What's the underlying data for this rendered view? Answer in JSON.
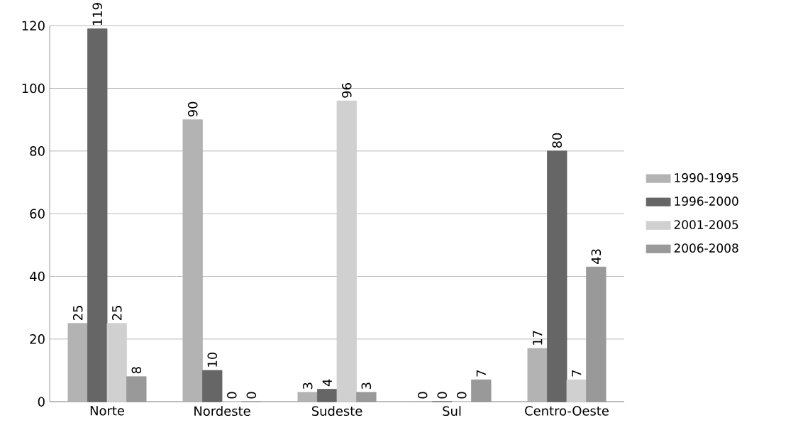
{
  "chart_data": {
    "type": "bar",
    "categories": [
      "Norte",
      "Nordeste",
      "Sudeste",
      "Sul",
      "Centro-Oeste"
    ],
    "series": [
      {
        "name": "1990-1995",
        "color": "#b3b3b3",
        "values": [
          25,
          90,
          3,
          0,
          17
        ]
      },
      {
        "name": "1996-2000",
        "color": "#666666",
        "values": [
          119,
          10,
          4,
          0,
          80
        ]
      },
      {
        "name": "2001-2005",
        "color": "#d0d0d0",
        "values": [
          25,
          0,
          96,
          0,
          7
        ]
      },
      {
        "name": "2006-2008",
        "color": "#999999",
        "values": [
          8,
          0,
          3,
          7,
          43
        ]
      }
    ],
    "ylim": [
      0,
      120
    ],
    "yticks": [
      0,
      20,
      40,
      60,
      80,
      100,
      120
    ],
    "grid": "y",
    "legend": "right",
    "data_labels": true
  }
}
